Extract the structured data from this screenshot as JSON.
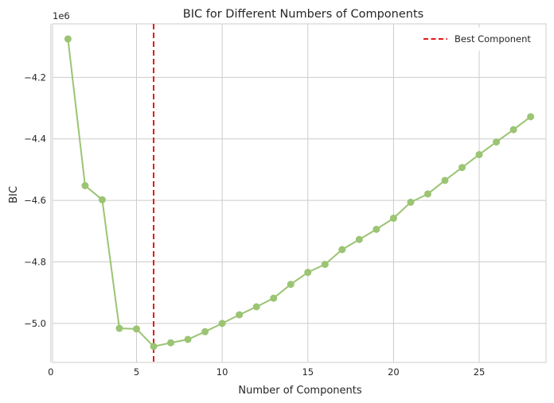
{
  "chart_data": {
    "type": "line",
    "title": "BIC for Different Numbers of Components",
    "xlabel": "Number of Components",
    "ylabel": "BIC",
    "offset_label": "1e6",
    "x": [
      1,
      2,
      3,
      4,
      5,
      6,
      7,
      8,
      9,
      10,
      11,
      12,
      13,
      14,
      15,
      16,
      17,
      18,
      19,
      20,
      21,
      22,
      23,
      24,
      25,
      26,
      27,
      28
    ],
    "series": [
      {
        "values": [
          -4.075,
          -4.552,
          -4.598,
          -5.016,
          -5.018,
          -5.075,
          -5.063,
          -5.052,
          -5.027,
          -5.0,
          -4.972,
          -4.946,
          -4.918,
          -4.873,
          -4.834,
          -4.808,
          -4.76,
          -4.727,
          -4.694,
          -4.658,
          -4.606,
          -4.579,
          -4.535,
          -4.493,
          -4.451,
          -4.41,
          -4.37,
          -4.328
        ],
        "color": "#9bc473"
      }
    ],
    "best_component": {
      "x": 6,
      "label": "Best Component",
      "color": "#e41a1c"
    },
    "xlim": [
      0.1,
      28.9
    ],
    "ylim": [
      -5.127,
      -4.026
    ],
    "xticks": [
      0,
      5,
      10,
      15,
      20,
      25
    ],
    "yticks": [
      -5.0,
      -4.8,
      -4.6,
      -4.4,
      -4.2
    ],
    "ytick_labels": [
      "−5.0",
      "−4.8",
      "−4.6",
      "−4.4",
      "−4.2"
    ],
    "grid": true,
    "legend_position": "top-right"
  }
}
